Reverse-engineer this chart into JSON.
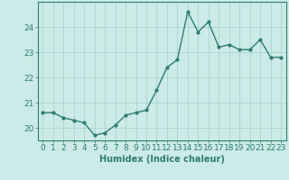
{
  "x": [
    0,
    1,
    2,
    3,
    4,
    5,
    6,
    7,
    8,
    9,
    10,
    11,
    12,
    13,
    14,
    15,
    16,
    17,
    18,
    19,
    20,
    21,
    22,
    23
  ],
  "y": [
    20.6,
    20.6,
    20.4,
    20.3,
    20.2,
    19.7,
    19.8,
    20.1,
    20.5,
    20.6,
    20.7,
    21.5,
    22.4,
    22.7,
    24.6,
    23.8,
    24.2,
    23.2,
    23.3,
    23.1,
    23.1,
    23.5,
    22.8,
    22.8
  ],
  "line_color": "#2e7d6e",
  "marker": "o",
  "marker_size": 2.0,
  "line_width": 1.0,
  "bg_color": "#cceae7",
  "grid_color": "#aad4d0",
  "axis_color": "#2e7d6e",
  "xlabel": "Humidex (Indice chaleur)",
  "xlabel_fontsize": 7,
  "tick_fontsize": 6.5,
  "ylim": [
    19.5,
    25.0
  ],
  "yticks": [
    20,
    21,
    22,
    23,
    24
  ],
  "xticks": [
    0,
    1,
    2,
    3,
    4,
    5,
    6,
    7,
    8,
    9,
    10,
    11,
    12,
    13,
    14,
    15,
    16,
    17,
    18,
    19,
    20,
    21,
    22,
    23
  ]
}
